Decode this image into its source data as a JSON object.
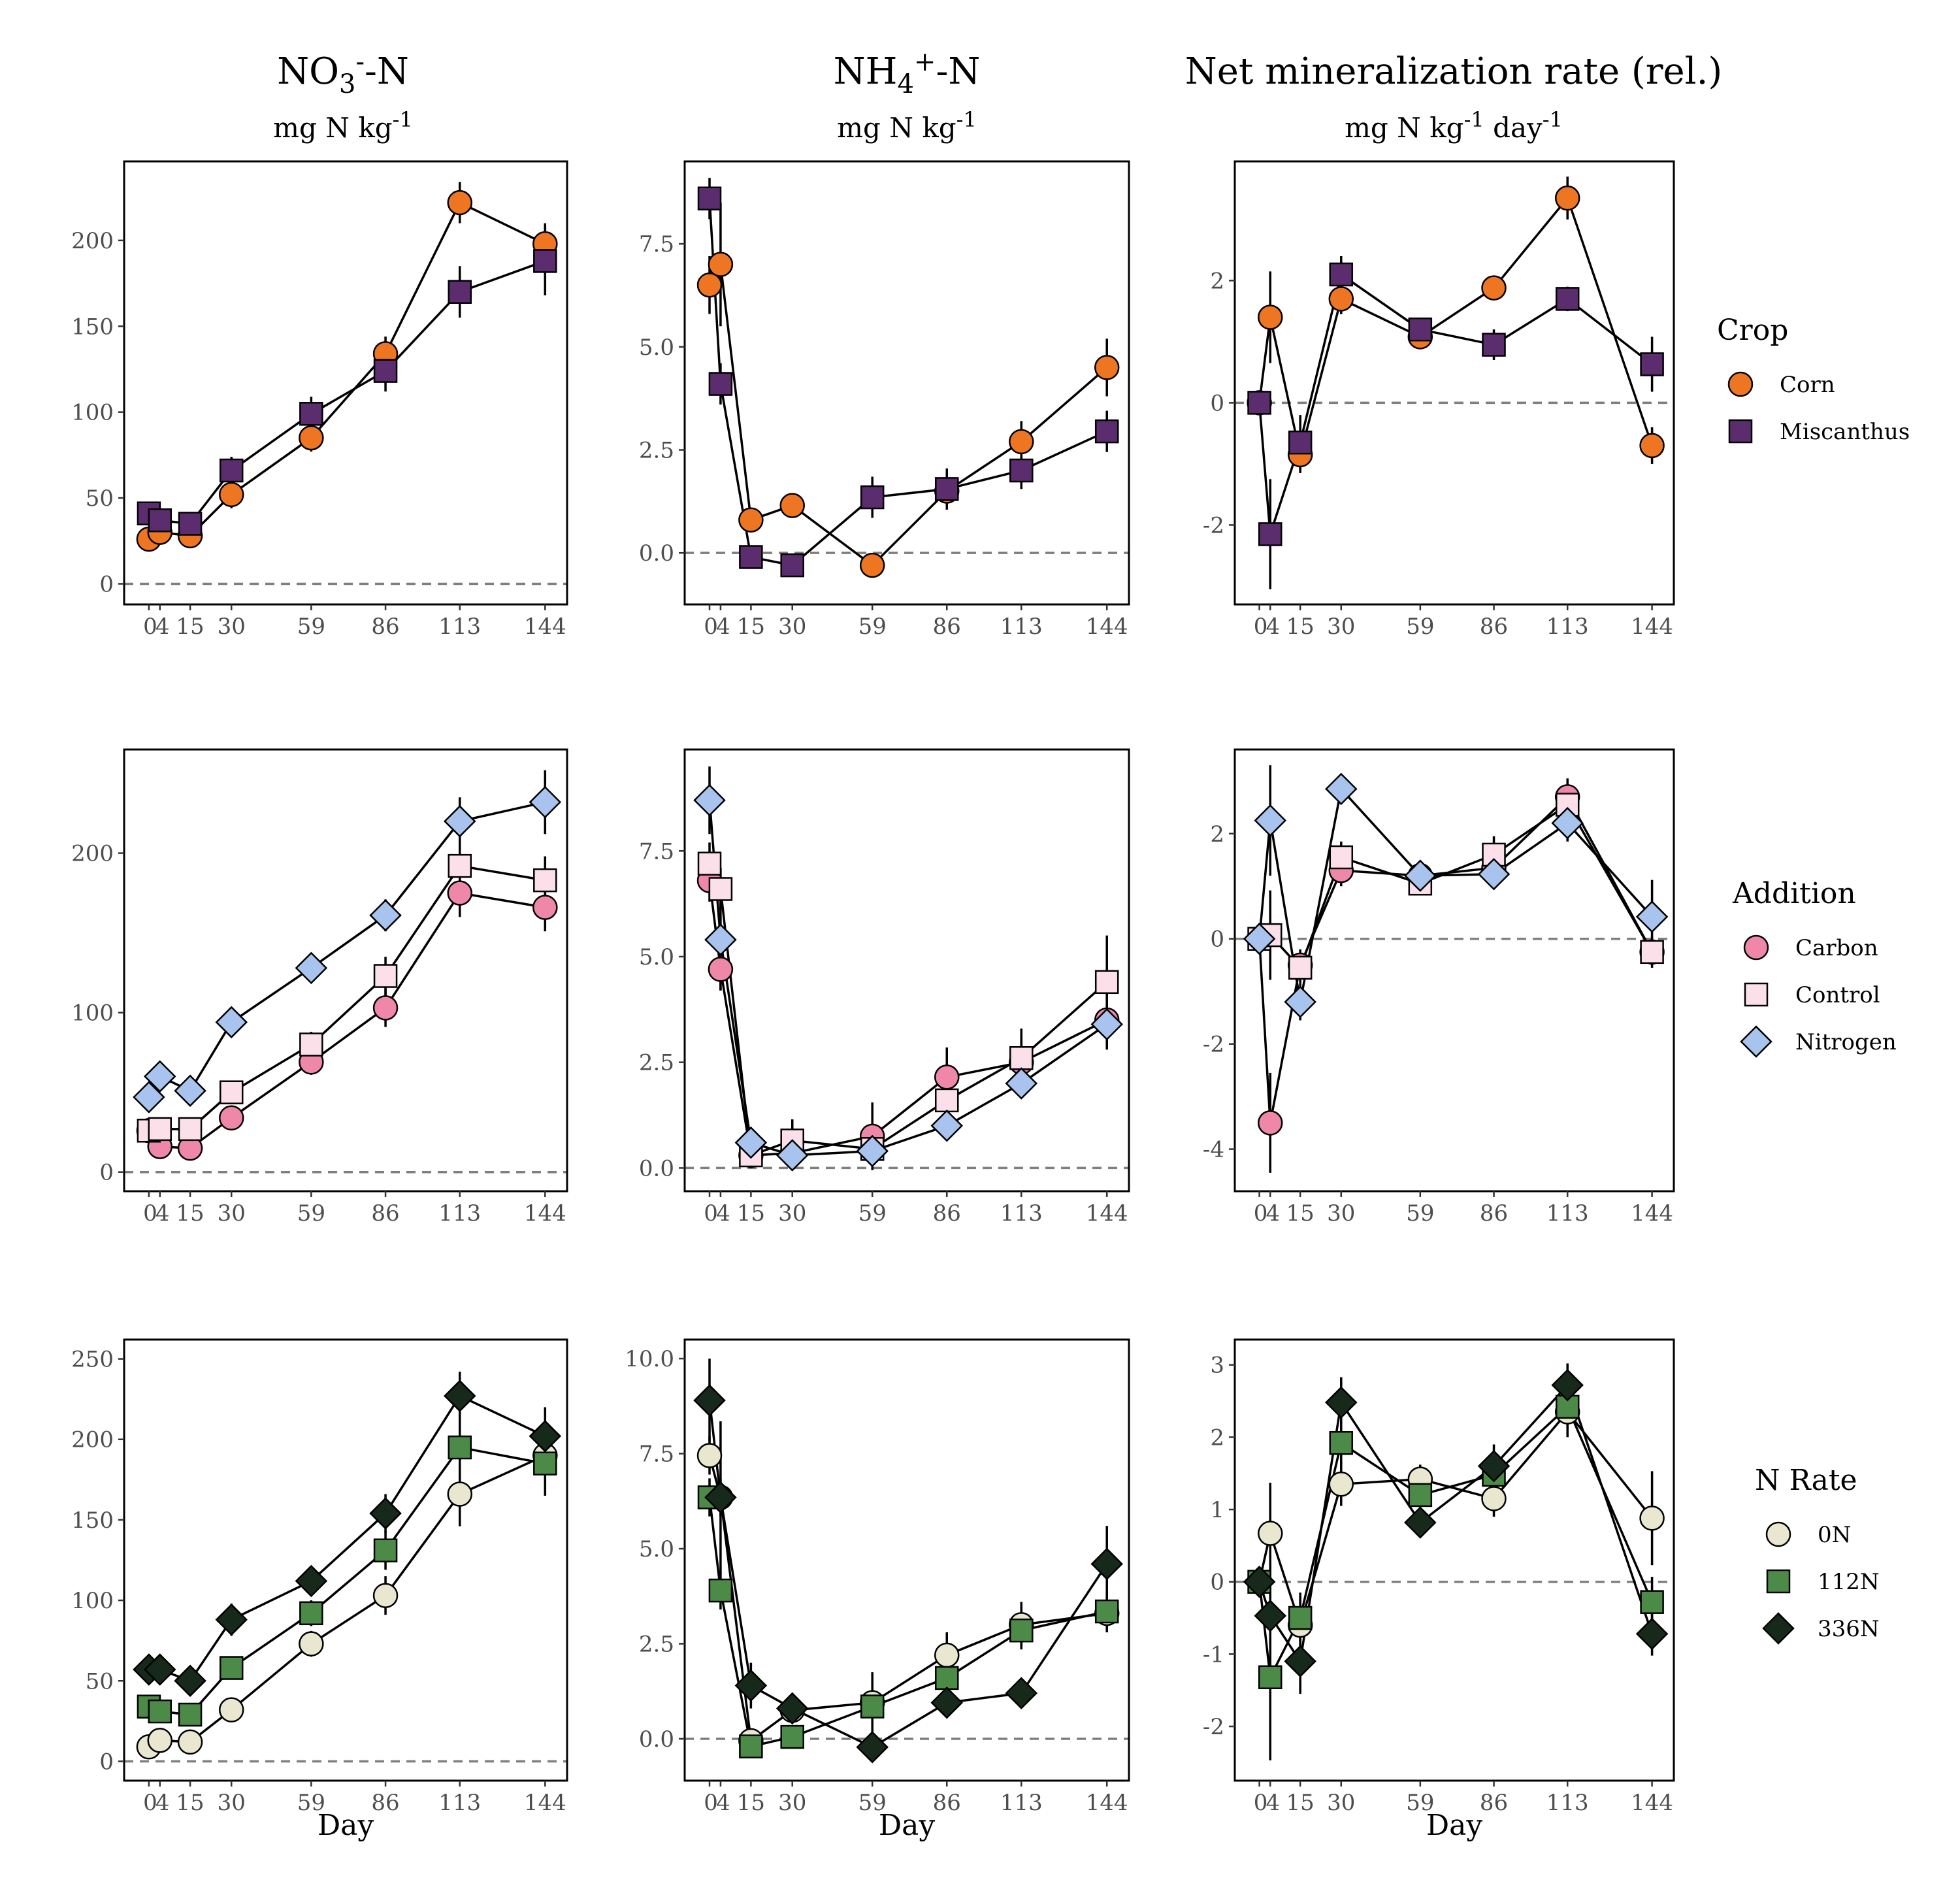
{
  "columns": [
    {
      "title": "NO3--N",
      "title_main": "NO",
      "title_sub": "3",
      "title_sup": "-",
      "title_end": "-N",
      "unit": "mg N kg-1",
      "unit_main": "mg N kg",
      "unit_sup": "-1",
      "unit_end": ""
    },
    {
      "title": "NH4+-N",
      "title_main": "NH",
      "title_sub": "4",
      "title_sup": "+",
      "title_end": "-N",
      "unit": "mg N kg-1",
      "unit_main": "mg N kg",
      "unit_sup": "-1",
      "unit_end": ""
    },
    {
      "title": "Net mineralization rate (rel.)",
      "title_main": "Net mineralization rate (rel.)",
      "title_sub": "",
      "title_sup": "",
      "title_end": "",
      "unit": "mg N kg-1 day-1",
      "unit_main": "mg N kg",
      "unit_sup": "-1",
      "unit_end": " day",
      "unit_sup2": "-1"
    }
  ],
  "x_axis_label": "Day",
  "x_ticks": [
    0,
    4,
    15,
    30,
    59,
    86,
    113,
    144
  ],
  "x_tick_labels": [
    "0",
    "4",
    "15",
    "30",
    "59",
    "86",
    "113",
    "144"
  ],
  "styles": {
    "Corn": {
      "shape": "circle",
      "fill": "#ee7623"
    },
    "Miscanthus": {
      "shape": "square",
      "fill": "#5c2d6e"
    },
    "Carbon": {
      "shape": "circle",
      "fill": "#ef88a8"
    },
    "Control": {
      "shape": "square",
      "fill": "#fbe0ea"
    },
    "Nitrogen": {
      "shape": "diamond",
      "fill": "#a8c4ee"
    },
    "0N": {
      "shape": "circle",
      "fill": "#e9e7cf"
    },
    "112N": {
      "shape": "square",
      "fill": "#4c8a47"
    },
    "336N": {
      "shape": "diamond",
      "fill": "#17291a"
    }
  },
  "legends": [
    {
      "title": "Crop",
      "items": [
        "Corn",
        "Miscanthus"
      ]
    },
    {
      "title": "Addition",
      "items": [
        "Carbon",
        "Control",
        "Nitrogen"
      ]
    },
    {
      "title": "N Rate",
      "items": [
        "0N",
        "112N",
        "336N"
      ]
    }
  ],
  "chart_data": [
    {
      "type": "line",
      "row": 0,
      "col": 0,
      "ylim": [
        -12,
        246
      ],
      "yticks": [
        0,
        50,
        100,
        150,
        200
      ],
      "ytick_labels": [
        "0",
        "50",
        "100",
        "150",
        "200"
      ],
      "hline": 0,
      "series": [
        {
          "name": "Corn",
          "x": [
            0,
            4,
            15,
            30,
            59,
            86,
            113,
            144
          ],
          "y": [
            26,
            30,
            28,
            52,
            85,
            134,
            222,
            198
          ],
          "err": [
            3,
            3,
            3,
            8,
            8,
            10,
            12,
            12
          ]
        },
        {
          "name": "Miscanthus",
          "x": [
            0,
            4,
            15,
            30,
            59,
            86,
            113,
            144
          ],
          "y": [
            41,
            37,
            35,
            66,
            99,
            124,
            170,
            188
          ],
          "err": [
            4,
            3,
            3,
            8,
            10,
            12,
            15,
            20
          ]
        }
      ]
    },
    {
      "type": "line",
      "row": 0,
      "col": 1,
      "ylim": [
        -1.25,
        9.5
      ],
      "yticks": [
        0,
        2.5,
        5,
        7.5
      ],
      "ytick_labels": [
        "0.0",
        "2.5",
        "5.0",
        "7.5"
      ],
      "hline": 0,
      "series": [
        {
          "name": "Corn",
          "x": [
            0,
            4,
            15,
            30,
            59,
            86,
            113,
            144
          ],
          "y": [
            6.5,
            7.0,
            0.8,
            1.15,
            -0.3,
            1.5,
            2.7,
            4.5
          ],
          "err": [
            0.7,
            1.5,
            0.2,
            0.2,
            0.3,
            0.3,
            0.5,
            0.7
          ]
        },
        {
          "name": "Miscanthus",
          "x": [
            0,
            4,
            15,
            30,
            59,
            86,
            113,
            144
          ],
          "y": [
            8.6,
            4.1,
            -0.1,
            -0.3,
            1.35,
            1.55,
            2.0,
            2.95
          ],
          "err": [
            0.5,
            0.5,
            0.2,
            0.15,
            0.5,
            0.5,
            0.45,
            0.5
          ]
        }
      ]
    },
    {
      "type": "line",
      "row": 0,
      "col": 2,
      "ylim": [
        -3.3,
        3.95
      ],
      "yticks": [
        -2,
        0,
        2
      ],
      "ytick_labels": [
        "-2",
        "0",
        "2"
      ],
      "hline": 0,
      "series": [
        {
          "name": "Corn",
          "x": [
            0,
            4,
            15,
            30,
            59,
            86,
            113,
            144
          ],
          "y": [
            0.0,
            1.4,
            -0.85,
            1.7,
            1.08,
            1.88,
            3.35,
            -0.7
          ],
          "err": [
            0.2,
            0.75,
            0.3,
            0.25,
            0.15,
            0.15,
            0.35,
            0.3
          ]
        },
        {
          "name": "Miscanthus",
          "x": [
            0,
            4,
            15,
            30,
            59,
            86,
            113,
            144
          ],
          "y": [
            0.0,
            -2.15,
            -0.65,
            2.1,
            1.2,
            0.95,
            1.7,
            0.63
          ],
          "err": [
            0.2,
            0.9,
            0.45,
            0.3,
            0.15,
            0.25,
            0.2,
            0.45
          ]
        }
      ]
    },
    {
      "type": "line",
      "row": 1,
      "col": 0,
      "ylim": [
        -12,
        265
      ],
      "yticks": [
        0,
        100,
        200
      ],
      "ytick_labels": [
        "0",
        "100",
        "200"
      ],
      "hline": 0,
      "series": [
        {
          "name": "Carbon",
          "x": [
            0,
            4,
            15,
            30,
            59,
            86,
            113,
            144
          ],
          "y": [
            26,
            16,
            15,
            34,
            69,
            103,
            175,
            166
          ],
          "err": [
            3,
            3,
            3,
            5,
            8,
            12,
            15,
            15
          ]
        },
        {
          "name": "Control",
          "x": [
            0,
            4,
            15,
            30,
            59,
            86,
            113,
            144
          ],
          "y": [
            26,
            27,
            27,
            50,
            80,
            123,
            192,
            183
          ],
          "err": [
            3,
            3,
            3,
            5,
            8,
            12,
            15,
            15
          ]
        },
        {
          "name": "Nitrogen",
          "x": [
            0,
            4,
            15,
            30,
            59,
            86,
            113,
            144
          ],
          "y": [
            47,
            60,
            51,
            94,
            128,
            161,
            220,
            232
          ],
          "err": [
            3,
            5,
            3,
            6,
            5,
            10,
            15,
            20
          ]
        }
      ]
    },
    {
      "type": "line",
      "row": 1,
      "col": 1,
      "ylim": [
        -0.55,
        9.9
      ],
      "yticks": [
        0,
        2.5,
        5,
        7.5
      ],
      "ytick_labels": [
        "0.0",
        "2.5",
        "5.0",
        "7.5"
      ],
      "hline": 0,
      "series": [
        {
          "name": "Carbon",
          "x": [
            0,
            4,
            15,
            30,
            59,
            86,
            113,
            144
          ],
          "y": [
            6.8,
            4.7,
            0.3,
            0.35,
            0.75,
            2.15,
            2.5,
            3.5
          ],
          "err": [
            0.5,
            0.5,
            0.3,
            0.2,
            0.8,
            0.7,
            0.6,
            0.7
          ]
        },
        {
          "name": "Control",
          "x": [
            0,
            4,
            15,
            30,
            59,
            86,
            113,
            144
          ],
          "y": [
            7.2,
            6.6,
            0.3,
            0.65,
            0.45,
            1.6,
            2.6,
            4.4
          ],
          "err": [
            0.5,
            0.5,
            0.3,
            0.5,
            0.3,
            0.5,
            0.7,
            1.1
          ]
        },
        {
          "name": "Nitrogen",
          "x": [
            0,
            4,
            15,
            30,
            59,
            86,
            113,
            144
          ],
          "y": [
            8.7,
            5.4,
            0.6,
            0.3,
            0.4,
            1.0,
            2.0,
            3.4
          ],
          "err": [
            0.8,
            1.2,
            0.2,
            0.15,
            0.2,
            0.2,
            0.3,
            0.5
          ]
        }
      ]
    },
    {
      "type": "line",
      "row": 1,
      "col": 2,
      "ylim": [
        -4.8,
        3.6
      ],
      "yticks": [
        -4,
        -2,
        0,
        2
      ],
      "ytick_labels": [
        "-4",
        "-2",
        "0",
        "2"
      ],
      "hline": 0,
      "series": [
        {
          "name": "Carbon",
          "x": [
            0,
            4,
            15,
            30,
            59,
            86,
            113,
            144
          ],
          "y": [
            0.0,
            -3.5,
            -0.5,
            1.3,
            1.2,
            1.35,
            2.7,
            -0.25
          ],
          "err": [
            0.2,
            0.95,
            0.3,
            0.3,
            0.2,
            0.25,
            0.35,
            0.25
          ]
        },
        {
          "name": "Control",
          "x": [
            0,
            4,
            15,
            30,
            59,
            86,
            113,
            144
          ],
          "y": [
            0.0,
            0.07,
            -0.55,
            1.55,
            1.05,
            1.6,
            2.55,
            -0.25
          ],
          "err": [
            0.2,
            0.85,
            0.3,
            0.3,
            0.15,
            0.35,
            0.3,
            0.3
          ]
        },
        {
          "name": "Nitrogen",
          "x": [
            0,
            4,
            15,
            30,
            59,
            86,
            113,
            144
          ],
          "y": [
            0.0,
            2.25,
            -1.2,
            2.85,
            1.2,
            1.23,
            2.2,
            0.42
          ],
          "err": [
            0.2,
            1.05,
            0.35,
            0.25,
            0.2,
            0.2,
            0.35,
            0.7
          ]
        }
      ]
    },
    {
      "type": "line",
      "row": 2,
      "col": 0,
      "ylim": [
        -12,
        262
      ],
      "yticks": [
        0,
        50,
        100,
        150,
        200,
        250
      ],
      "ytick_labels": [
        "0",
        "50",
        "100",
        "150",
        "200",
        "250"
      ],
      "hline": 0,
      "series": [
        {
          "name": "0N",
          "x": [
            0,
            4,
            15,
            30,
            59,
            86,
            113,
            144
          ],
          "y": [
            9,
            13,
            12,
            32,
            73,
            103,
            166,
            190
          ],
          "err": [
            3,
            3,
            3,
            5,
            8,
            12,
            20,
            10
          ]
        },
        {
          "name": "112N",
          "x": [
            0,
            4,
            15,
            30,
            59,
            86,
            113,
            144
          ],
          "y": [
            34,
            31,
            29,
            58,
            92,
            131,
            195,
            185
          ],
          "err": [
            3,
            3,
            3,
            5,
            8,
            12,
            20,
            20
          ]
        },
        {
          "name": "336N",
          "x": [
            0,
            4,
            15,
            30,
            59,
            86,
            113,
            144
          ],
          "y": [
            57,
            57,
            50,
            88,
            112,
            154,
            227,
            202
          ],
          "err": [
            3,
            3,
            3,
            10,
            8,
            12,
            15,
            18
          ]
        }
      ]
    },
    {
      "type": "line",
      "row": 2,
      "col": 1,
      "ylim": [
        -1.1,
        10.5
      ],
      "yticks": [
        0,
        2.5,
        5,
        7.5,
        10
      ],
      "ytick_labels": [
        "0.0",
        "2.5",
        "5.0",
        "7.5",
        "10.0"
      ],
      "hline": 0,
      "series": [
        {
          "name": "0N",
          "x": [
            0,
            4,
            15,
            30,
            59,
            86,
            113,
            144
          ],
          "y": [
            7.45,
            6.35,
            -0.05,
            0.75,
            0.95,
            2.2,
            3.0,
            3.3
          ],
          "err": [
            0.5,
            0.5,
            0.3,
            0.3,
            0.8,
            0.6,
            0.6,
            0.5
          ]
        },
        {
          "name": "112N",
          "x": [
            0,
            4,
            15,
            30,
            59,
            86,
            113,
            144
          ],
          "y": [
            6.35,
            3.9,
            -0.2,
            0.05,
            0.85,
            1.6,
            2.85,
            3.35
          ],
          "err": [
            0.5,
            0.5,
            0.3,
            0.2,
            0.3,
            0.5,
            0.5,
            0.5
          ]
        },
        {
          "name": "336N",
          "x": [
            0,
            4,
            15,
            30,
            59,
            86,
            113,
            144
          ],
          "y": [
            8.9,
            6.35,
            1.4,
            0.8,
            -0.22,
            0.95,
            1.2,
            4.6
          ],
          "err": [
            1.1,
            2.0,
            0.6,
            0.2,
            0.2,
            0.3,
            0.3,
            1.0
          ]
        }
      ]
    },
    {
      "type": "line",
      "row": 2,
      "col": 2,
      "ylim": [
        -2.75,
        3.35
      ],
      "yticks": [
        -2,
        -1,
        0,
        1,
        2,
        3
      ],
      "ytick_labels": [
        "-2",
        "-1",
        "0",
        "1",
        "2",
        "3"
      ],
      "hline": 0,
      "series": [
        {
          "name": "0N",
          "x": [
            0,
            4,
            15,
            30,
            59,
            86,
            113,
            144
          ],
          "y": [
            0.0,
            0.67,
            -0.6,
            1.35,
            1.42,
            1.15,
            2.35,
            0.88
          ],
          "err": [
            0.15,
            0.7,
            0.4,
            0.3,
            0.2,
            0.25,
            0.35,
            0.65
          ]
        },
        {
          "name": "112N",
          "x": [
            0,
            4,
            15,
            30,
            59,
            86,
            113,
            144
          ],
          "y": [
            0.0,
            -1.32,
            -0.5,
            1.92,
            1.2,
            1.48,
            2.42,
            -0.28
          ],
          "err": [
            0.15,
            1.15,
            0.35,
            0.3,
            0.25,
            0.3,
            0.3,
            0.35
          ]
        },
        {
          "name": "336N",
          "x": [
            0,
            4,
            15,
            30,
            59,
            86,
            113,
            144
          ],
          "y": [
            0.0,
            -0.47,
            -1.1,
            2.48,
            0.82,
            1.6,
            2.72,
            -0.72
          ],
          "err": [
            0.15,
            0.7,
            0.45,
            0.35,
            0.2,
            0.3,
            0.3,
            0.3
          ]
        }
      ]
    }
  ]
}
